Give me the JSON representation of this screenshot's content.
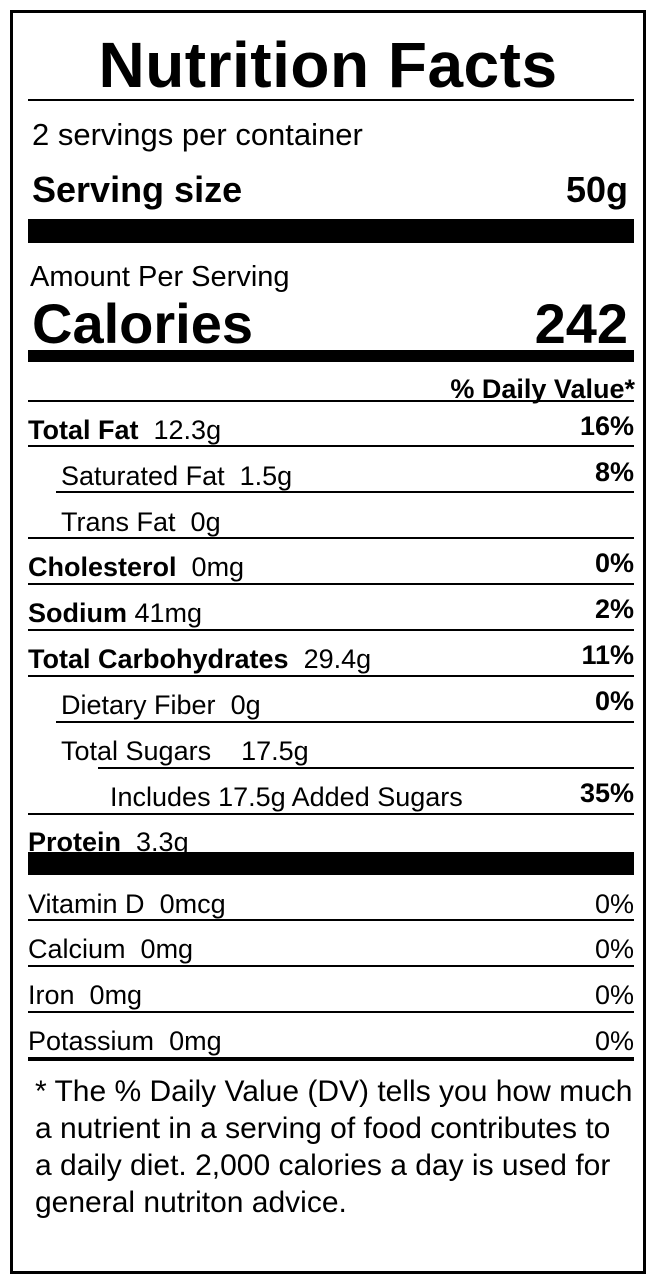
{
  "title": "Nutrition Facts",
  "servings_per_container": "2 servings per container",
  "serving_size_label": "Serving size",
  "serving_size_value": "50g",
  "amount_per_serving": "Amount Per Serving",
  "calories_label": "Calories",
  "calories_value": "242",
  "daily_value_header": "% Daily Value*",
  "nutrients": [
    {
      "name": "Total Fat",
      "amount": "12.3g",
      "dv": "16%"
    },
    {
      "name": "Saturated Fat",
      "amount": "1.5g",
      "dv": "8%"
    },
    {
      "name": "Trans Fat",
      "amount": "0g",
      "dv": ""
    },
    {
      "name": "Cholesterol",
      "amount": "0mg",
      "dv": "0%"
    },
    {
      "name": "Sodium",
      "amount": "41mg",
      "dv": "2%"
    },
    {
      "name": "Total Carbohydrates",
      "amount": "29.4g",
      "dv": "11%"
    },
    {
      "name": "Dietary Fiber",
      "amount": "0g",
      "dv": "0%"
    },
    {
      "name": "Total Sugars",
      "amount": "17.5g",
      "dv": ""
    },
    {
      "name": "Includes 17.5g Added Sugars",
      "amount": "",
      "dv": "35%"
    },
    {
      "name": "Protein",
      "amount": "3.3g",
      "dv": ""
    }
  ],
  "vitamins": [
    {
      "name": "Vitamin D",
      "amount": "0mcg",
      "dv": "0%"
    },
    {
      "name": "Calcium",
      "amount": "0mg",
      "dv": "0%"
    },
    {
      "name": "Iron",
      "amount": "0mg",
      "dv": "0%"
    },
    {
      "name": "Potassium",
      "amount": "0mg",
      "dv": "0%"
    }
  ],
  "footnote": "* The % Daily Value (DV) tells you how much a nutrient in a serving of food contributes to a daily diet. 2,000 calories a day is used for general nutriton advice."
}
